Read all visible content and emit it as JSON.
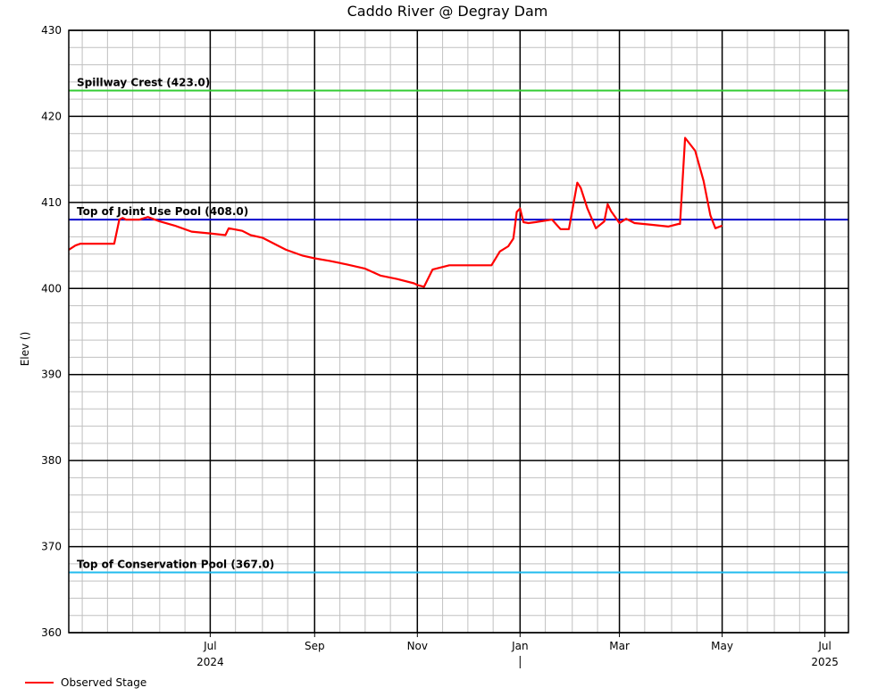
{
  "chart_data": {
    "type": "line",
    "title": "Caddo River @ Degray Dam",
    "ylabel": "Elev ()",
    "xlabel": "",
    "ylim": [
      360,
      430
    ],
    "yticks": [
      360,
      370,
      380,
      390,
      400,
      410,
      420,
      430
    ],
    "xlim": [
      "2024-04-08",
      "2025-07-15"
    ],
    "x_month_ticks": [
      {
        "date": "2024-07-01",
        "label": "Jul"
      },
      {
        "date": "2024-09-01",
        "label": "Sep"
      },
      {
        "date": "2024-11-01",
        "label": "Nov"
      },
      {
        "date": "2025-01-01",
        "label": "Jan"
      },
      {
        "date": "2025-03-01",
        "label": "Mar"
      },
      {
        "date": "2025-05-01",
        "label": "May"
      },
      {
        "date": "2025-07-01",
        "label": "Jul"
      }
    ],
    "x_year_labels": [
      {
        "date": "2024-07-01",
        "label": "2024"
      },
      {
        "date": "2025-07-01",
        "label": "2025"
      }
    ],
    "year_separator_date": "2025-01-01",
    "grid": true,
    "legend_position": "bottom-left",
    "reference_lines": [
      {
        "label": "Spillway Crest (423.0)",
        "value": 423.0,
        "color": "#33cc33"
      },
      {
        "label": "Top of Joint Use Pool (408.0)",
        "value": 408.0,
        "color": "#0000cc"
      },
      {
        "label": "Top of Conservation Pool (367.0)",
        "value": 367.0,
        "color": "#22bbee"
      }
    ],
    "series": [
      {
        "name": "Observed Stage",
        "color": "#ff0000",
        "x": [
          "2024-04-08",
          "2024-04-12",
          "2024-04-15",
          "2024-04-25",
          "2024-05-05",
          "2024-05-08",
          "2024-05-10",
          "2024-05-12",
          "2024-05-20",
          "2024-05-25",
          "2024-06-01",
          "2024-06-10",
          "2024-06-20",
          "2024-07-01",
          "2024-07-10",
          "2024-07-12",
          "2024-07-20",
          "2024-07-25",
          "2024-08-01",
          "2024-08-10",
          "2024-08-15",
          "2024-08-25",
          "2024-09-01",
          "2024-09-10",
          "2024-09-20",
          "2024-10-01",
          "2024-10-10",
          "2024-10-20",
          "2024-10-30",
          "2024-11-01",
          "2024-11-05",
          "2024-11-10",
          "2024-11-20",
          "2024-12-01",
          "2024-12-10",
          "2024-12-15",
          "2024-12-20",
          "2024-12-25",
          "2024-12-28",
          "2024-12-30",
          "2025-01-01",
          "2025-01-03",
          "2025-01-06",
          "2025-01-10",
          "2025-01-20",
          "2025-01-25",
          "2025-01-30",
          "2025-02-04",
          "2025-02-06",
          "2025-02-10",
          "2025-02-15",
          "2025-02-20",
          "2025-02-22",
          "2025-02-24",
          "2025-03-01",
          "2025-03-05",
          "2025-03-10",
          "2025-03-20",
          "2025-03-30",
          "2025-04-05",
          "2025-04-06",
          "2025-04-09",
          "2025-04-15",
          "2025-04-20",
          "2025-04-24",
          "2025-04-27",
          "2025-05-01"
        ],
        "values": [
          404.5,
          405.0,
          405.2,
          405.2,
          405.2,
          408.0,
          408.2,
          408.0,
          408.0,
          408.3,
          407.8,
          407.3,
          406.6,
          406.4,
          406.2,
          407.0,
          406.7,
          406.2,
          405.9,
          405.0,
          404.5,
          403.8,
          403.5,
          403.2,
          402.8,
          402.3,
          401.5,
          401.1,
          400.6,
          400.4,
          400.2,
          402.2,
          402.7,
          402.7,
          402.7,
          402.7,
          404.3,
          404.9,
          405.8,
          408.9,
          409.3,
          407.7,
          407.6,
          407.7,
          408.0,
          406.9,
          406.9,
          412.3,
          411.7,
          409.3,
          407.0,
          407.8,
          409.8,
          409.0,
          407.6,
          408.1,
          407.6,
          407.4,
          407.2,
          407.5,
          407.5,
          417.5,
          416.0,
          412.5,
          408.5,
          407.0,
          407.3
        ]
      }
    ]
  }
}
